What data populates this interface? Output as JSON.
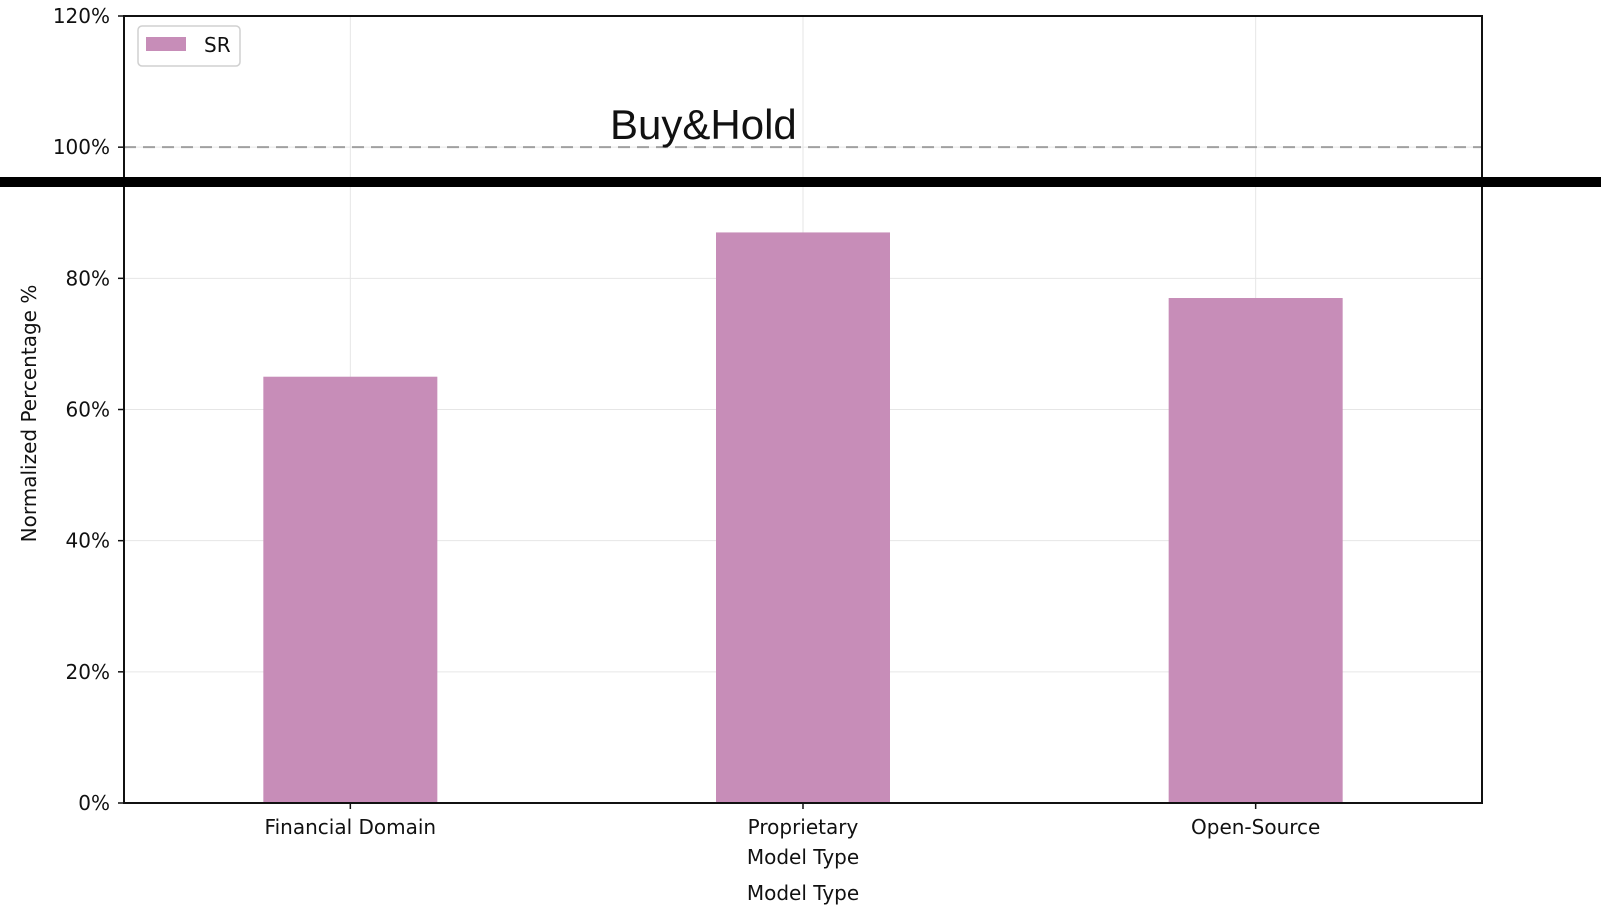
{
  "chart_data": {
    "type": "bar",
    "categories": [
      "Financial Domain",
      "Proprietary\nModel Type",
      "Open-Source"
    ],
    "series": [
      {
        "name": "SR",
        "values": [
          65,
          87,
          77
        ],
        "color": "#c78db8"
      }
    ],
    "ylabel": "Normalized Percentage %",
    "xlabel": "Model Type",
    "ylim": [
      0,
      120
    ],
    "yticks": [
      0,
      20,
      40,
      60,
      80,
      100,
      120
    ],
    "ytick_labels": [
      "0%",
      "20%",
      "40%",
      "60%",
      "80%",
      "100%",
      "120%"
    ],
    "reference_line": {
      "value": 100,
      "label": "Buy&Hold",
      "style": "dashed",
      "color": "#a0a0a0"
    },
    "grid": true,
    "legend": {
      "position": "top-left",
      "entries": [
        "SR"
      ]
    },
    "divider_color": "#000000"
  }
}
